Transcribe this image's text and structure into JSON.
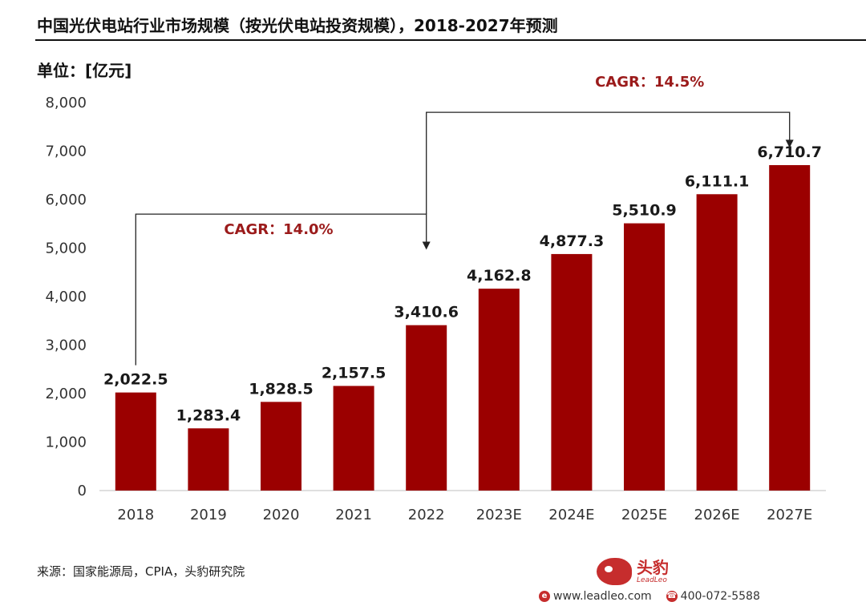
{
  "header": {
    "title": "中国光伏电站行业市场规模（按光伏电站投资规模），2018-2027年预测",
    "unit": "单位：[亿元]"
  },
  "footer": {
    "source": "来源：国家能源局，CPIA，头豹研究院",
    "logo_cn": "头豹",
    "logo_en": "LeadLeo",
    "website": "www.leadleo.com",
    "phone": "400-072-5588",
    "brand_color": "#c62d2d"
  },
  "chart_data": {
    "type": "bar",
    "categories": [
      "2018",
      "2019",
      "2020",
      "2021",
      "2022",
      "2023E",
      "2024E",
      "2025E",
      "2026E",
      "2027E"
    ],
    "values": [
      2022.5,
      1283.4,
      1828.5,
      2157.5,
      3410.6,
      4162.8,
      4877.3,
      5510.9,
      6111.1,
      6710.7
    ],
    "value_labels": [
      "2,022.5",
      "1,283.4",
      "1,828.5",
      "2,157.5",
      "3,410.6",
      "4,162.8",
      "4,877.3",
      "5,510.9",
      "6,111.1",
      "6,710.7"
    ],
    "yticks": [
      "0",
      "1,000",
      "2,000",
      "3,000",
      "4,000",
      "5,000",
      "6,000",
      "7,000",
      "8,000"
    ],
    "ylim": [
      0,
      8000
    ],
    "bar_color": "#9b0000",
    "annotations": [
      {
        "text": "CAGR：14.0%",
        "from": "2018",
        "to": "2022"
      },
      {
        "text": "CAGR：14.5%",
        "from": "2022",
        "to": "2027E"
      }
    ],
    "annotation_color": "#9b1b1b"
  }
}
